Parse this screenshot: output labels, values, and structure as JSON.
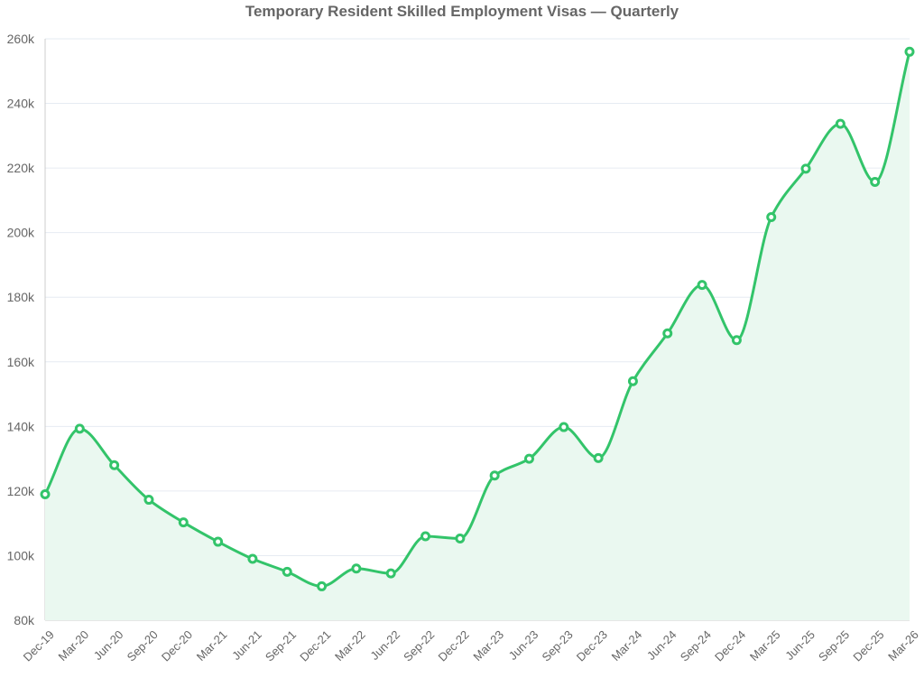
{
  "chart_data": {
    "type": "area",
    "title": "Temporary Resident Skilled Employment Visas — Quarterly",
    "xlabel": "",
    "ylabel": "",
    "categories": [
      "Dec-19",
      "Mar-20",
      "Jun-20",
      "Sep-20",
      "Dec-20",
      "Mar-21",
      "Jun-21",
      "Sep-21",
      "Dec-21",
      "Mar-22",
      "Jun-22",
      "Sep-22",
      "Dec-22",
      "Mar-23",
      "Jun-23",
      "Sep-23",
      "Dec-23",
      "Mar-24",
      "Jun-24",
      "Sep-24",
      "Dec-24",
      "Mar-25",
      "Jun-25",
      "Sep-25",
      "Dec-25",
      "Mar-26"
    ],
    "series": [
      {
        "values": [
          119000,
          139300,
          128000,
          117300,
          110300,
          104300,
          99000,
          95000,
          90500,
          96000,
          94500,
          106000,
          105300,
          124800,
          130000,
          139800,
          130200,
          154000,
          168800,
          183800,
          166700,
          204800,
          219800,
          233700,
          215700,
          256000
        ]
      }
    ],
    "ylim": [
      80000,
      260000
    ],
    "yticks": [
      80000,
      100000,
      120000,
      140000,
      160000,
      180000,
      200000,
      220000,
      240000,
      260000
    ],
    "ytick_labels": [
      "80k",
      "100k",
      "120k",
      "140k",
      "160k",
      "180k",
      "200k",
      "220k",
      "240k",
      "260k"
    ],
    "grid": true,
    "legend": "none",
    "colors": {
      "line": "#33c46a",
      "fill": "#eaf8f0",
      "grid": "#e6ebf2",
      "axis": "#cccccc",
      "text": "#666666"
    }
  }
}
